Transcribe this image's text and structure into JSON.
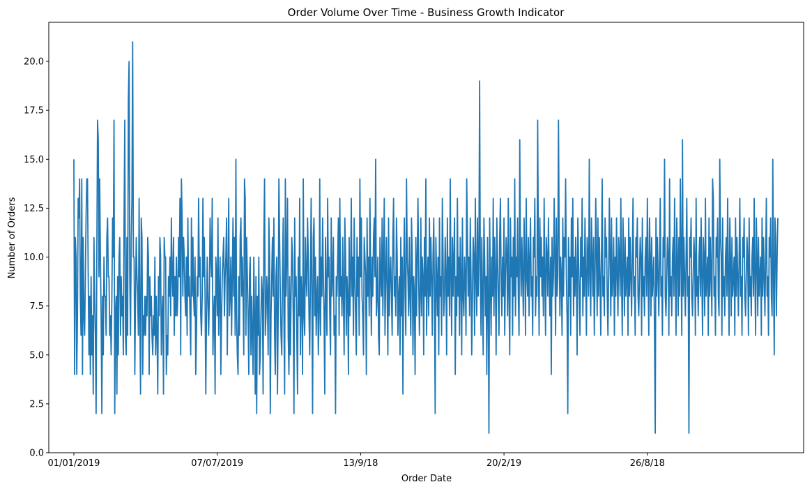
{
  "chart_data": {
    "type": "line",
    "title": "Order Volume Over Time - Business Growth Indicator",
    "xlabel": "Order Date",
    "ylabel": "Number of Orders",
    "ylim": [
      0,
      22
    ],
    "xlim": [
      -35,
      1018
    ],
    "yticks": [
      0.0,
      2.5,
      5.0,
      7.5,
      10.0,
      12.5,
      15.0,
      17.5,
      20.0
    ],
    "ytick_labels": [
      "0.0",
      "2.5",
      "5.0",
      "7.5",
      "10.0",
      "12.5",
      "15.0",
      "17.5",
      "20.0"
    ],
    "xticks": [
      0,
      200,
      400,
      600,
      800
    ],
    "xtick_labels": [
      "01/01/2019",
      "07/07/2019",
      "13/9/18",
      "20/2/19",
      "26/8/18"
    ],
    "grid": false,
    "legend": "none",
    "color": "#1f77b4",
    "series": [
      {
        "values": [
          15,
          4,
          11,
          10,
          4,
          7,
          13,
          12,
          14,
          8,
          6,
          14,
          4,
          11,
          7,
          6,
          9,
          12,
          14,
          14,
          9,
          5,
          8,
          4,
          9,
          5,
          7,
          3,
          11,
          8,
          6,
          2,
          10,
          17,
          16,
          9,
          14,
          10,
          7,
          2,
          8,
          5,
          10,
          8,
          8,
          6,
          11,
          12,
          9,
          9,
          6,
          7,
          5,
          8,
          12,
          10,
          17,
          2,
          7,
          8,
          3,
          9,
          5,
          10,
          11,
          6,
          9,
          7,
          8,
          5,
          12,
          17,
          6,
          5,
          11,
          6,
          18,
          20,
          9,
          6,
          11,
          13,
          21,
          10,
          10,
          4,
          8,
          11,
          9,
          8,
          6,
          13,
          7,
          3,
          12,
          11,
          4,
          7,
          6,
          8,
          6,
          8,
          7,
          11,
          10,
          4,
          9,
          7,
          8,
          6,
          5,
          7,
          6,
          10,
          5,
          8,
          6,
          3,
          9,
          7,
          11,
          10,
          5,
          7,
          8,
          3,
          11,
          10,
          10,
          4,
          6,
          5,
          9,
          8,
          10,
          7,
          12,
          9,
          8,
          11,
          6,
          9,
          7,
          10,
          7,
          8,
          11,
          9,
          13,
          5,
          14,
          12,
          8,
          11,
          10,
          8,
          7,
          10,
          6,
          12,
          8,
          9,
          7,
          5,
          12,
          8,
          11,
          8,
          7,
          10,
          4,
          6,
          9,
          8,
          13,
          9,
          10,
          7,
          6,
          8,
          13,
          9,
          11,
          8,
          3,
          7,
          10,
          8,
          6,
          8,
          12,
          10,
          9,
          13,
          5,
          7,
          8,
          3,
          10,
          9,
          7,
          12,
          6,
          8,
          10,
          4,
          7,
          9,
          10,
          11,
          7,
          9,
          10,
          12,
          5,
          9,
          13,
          7,
          8,
          10,
          6,
          9,
          12,
          8,
          11,
          6,
          15,
          7,
          5,
          4,
          9,
          6,
          11,
          12,
          8,
          10,
          8,
          5,
          14,
          13,
          6,
          11,
          9,
          7,
          4,
          9,
          10,
          5,
          8,
          6,
          4,
          10,
          7,
          3,
          9,
          2,
          8,
          6,
          10,
          4,
          5,
          7,
          9,
          8,
          3,
          11,
          14,
          6,
          7,
          9,
          8,
          5,
          12,
          10,
          2,
          7,
          9,
          11,
          8,
          12,
          6,
          4,
          9,
          10,
          3,
          7,
          14,
          11,
          8,
          6,
          5,
          9,
          12,
          7,
          3,
          14,
          8,
          10,
          13,
          6,
          4,
          9,
          5,
          8,
          11,
          10,
          7,
          2,
          12,
          8,
          9,
          6,
          3,
          10,
          7,
          13,
          5,
          9,
          8,
          4,
          14,
          7,
          6,
          11,
          9,
          8,
          12,
          10,
          7,
          5,
          9,
          13,
          8,
          2,
          11,
          12,
          7,
          10,
          6,
          8,
          9,
          5,
          7,
          14,
          6,
          10,
          8,
          12,
          9,
          7,
          3,
          11,
          8,
          6,
          13,
          9,
          10,
          7,
          5,
          12,
          8,
          9,
          11,
          6,
          7,
          2,
          9,
          8,
          10,
          12,
          6,
          13,
          8,
          9,
          7,
          11,
          8,
          5,
          12,
          10,
          6,
          9,
          8,
          4,
          11,
          7,
          9,
          13,
          8,
          10,
          6,
          12,
          9,
          7,
          5,
          11,
          8,
          10,
          6,
          14,
          9,
          12,
          8,
          7,
          5,
          11,
          10,
          9,
          4,
          12,
          8,
          10,
          7,
          13,
          9,
          6,
          10,
          8,
          11,
          12,
          9,
          15,
          7,
          8,
          10,
          6,
          5,
          11,
          9,
          8,
          12,
          7,
          10,
          13,
          6,
          9,
          11,
          8,
          5,
          12,
          7,
          9,
          10,
          8,
          6,
          11,
          13,
          8,
          9,
          7,
          12,
          10,
          6,
          8,
          9,
          5,
          11,
          7,
          10,
          3,
          9,
          12,
          8,
          6,
          14,
          10,
          9,
          7,
          11,
          8,
          6,
          12,
          10,
          5,
          9,
          8,
          4,
          11,
          7,
          10,
          13,
          9,
          6,
          8,
          12,
          7,
          10,
          9,
          5,
          11,
          8,
          14,
          6,
          9,
          10,
          7,
          12,
          8,
          11,
          9,
          6,
          10,
          12,
          8,
          2,
          11,
          9,
          7,
          10,
          5,
          12,
          8,
          9,
          6,
          13,
          10,
          7,
          8,
          11,
          9,
          5,
          12,
          8,
          10,
          7,
          14,
          9,
          6,
          11,
          8,
          10,
          12,
          4,
          9,
          7,
          13,
          8,
          10,
          6,
          11,
          9,
          5,
          12,
          8,
          7,
          10,
          9,
          6,
          14,
          11,
          8,
          10,
          7,
          12,
          9,
          5,
          8,
          11,
          10,
          6,
          13,
          9,
          7,
          12,
          8,
          10,
          19,
          9,
          6,
          11,
          8,
          5,
          12,
          10,
          7,
          9,
          4,
          11,
          8,
          1,
          12,
          9,
          6,
          10,
          8,
          13,
          7,
          11,
          9,
          5,
          12,
          10,
          8,
          6,
          11,
          13,
          9,
          7,
          10,
          8,
          12,
          6,
          9,
          11,
          10,
          7,
          13,
          8,
          5,
          12,
          9,
          10,
          6,
          11,
          8,
          14,
          7,
          10,
          9,
          12,
          8,
          6,
          16,
          10,
          8,
          11,
          9,
          7,
          12,
          10,
          6,
          13,
          9,
          8,
          11,
          7,
          10,
          12,
          8,
          9,
          6,
          11,
          10,
          13,
          7,
          9,
          8,
          17,
          10,
          6,
          12,
          9,
          11,
          8,
          10,
          7,
          13,
          9,
          6,
          11,
          10,
          8,
          12,
          9,
          7,
          10,
          4,
          11,
          8,
          9,
          13,
          10,
          6,
          12,
          8,
          9,
          17,
          11,
          7,
          10,
          9,
          6,
          12,
          8,
          11,
          10,
          14,
          9,
          7,
          2,
          11,
          8,
          10,
          6,
          12,
          9,
          13,
          7,
          10,
          8,
          11,
          9,
          5,
          12,
          10,
          8,
          6,
          11,
          9,
          13,
          7,
          10,
          8,
          12,
          9,
          6,
          11,
          10,
          8,
          15,
          9,
          7,
          12,
          10,
          8,
          11,
          6,
          9,
          13,
          10,
          7,
          12,
          8,
          11,
          9,
          6,
          10,
          14,
          8,
          9,
          7,
          12,
          10,
          11,
          8,
          6,
          9,
          13,
          10,
          7,
          12,
          8,
          9,
          11,
          6,
          10,
          8,
          12,
          9,
          7,
          11,
          10,
          8,
          13,
          9,
          6,
          12,
          10,
          7,
          11,
          8,
          9,
          10,
          6,
          12,
          8,
          11,
          9,
          7,
          10,
          13,
          8,
          9,
          6,
          11,
          10,
          12,
          8,
          7,
          9,
          11,
          10,
          6,
          12,
          8,
          9,
          7,
          10,
          11,
          8,
          13,
          9,
          6,
          12,
          10,
          7,
          11,
          8,
          9,
          10,
          6,
          1,
          12,
          8,
          11,
          9,
          7,
          10,
          13,
          8,
          9,
          6,
          11,
          10,
          15,
          8,
          7,
          9,
          11,
          10,
          6,
          14,
          8,
          9,
          7,
          10,
          11,
          8,
          13,
          9,
          6,
          12,
          10,
          7,
          11,
          8,
          14,
          10,
          6,
          16,
          8,
          11,
          9,
          7,
          10,
          13,
          8,
          9,
          1,
          11,
          10,
          12,
          8,
          7,
          9,
          11,
          10,
          6,
          13,
          8,
          9,
          7,
          10,
          11,
          8,
          12,
          9,
          6,
          11,
          10,
          7,
          13,
          8,
          9,
          10,
          6,
          12,
          8,
          11,
          9,
          7,
          14,
          13,
          8,
          9,
          6,
          11,
          10,
          12,
          8,
          7,
          15,
          11,
          10,
          6,
          12,
          8,
          9,
          7,
          10,
          11,
          8,
          13,
          9,
          6,
          12,
          10,
          7,
          11,
          8,
          9,
          10,
          6,
          12,
          8,
          11,
          9,
          7,
          10,
          13,
          8,
          9,
          6,
          11,
          10,
          12,
          8,
          7,
          9,
          11,
          10,
          6,
          12,
          8,
          9,
          7,
          10,
          11,
          8,
          13,
          9,
          6,
          12,
          10,
          7,
          11,
          8,
          9,
          10,
          6,
          12,
          8,
          11,
          9,
          7,
          10,
          13,
          8,
          9,
          6,
          11,
          10,
          12,
          8,
          7,
          15,
          9,
          5,
          12,
          11,
          7,
          10,
          12
        ]
      }
    ]
  }
}
